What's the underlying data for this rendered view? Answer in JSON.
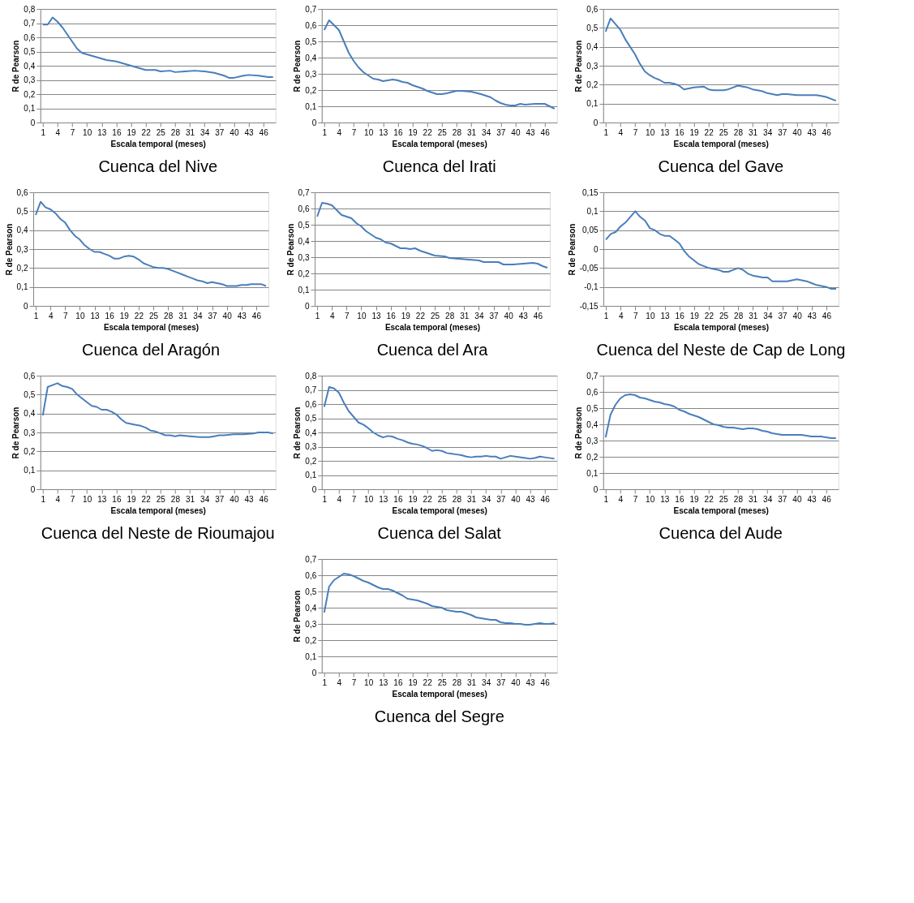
{
  "chart_data": [
    {
      "type": "line",
      "title": "Cuenca del Nive",
      "xlabel": "Escala temporal (meses)",
      "ylabel": "R de Pearson",
      "grid": "y",
      "xlim": [
        0.5,
        48.5
      ],
      "xticks": [
        1,
        4,
        7,
        10,
        13,
        16,
        19,
        22,
        25,
        28,
        31,
        34,
        37,
        40,
        43,
        46
      ],
      "ylim": [
        0,
        0.8
      ],
      "yticks": [
        {
          "value": 0,
          "label": "0"
        },
        {
          "value": 0.1,
          "label": "0,1"
        },
        {
          "value": 0.2,
          "label": "0,2"
        },
        {
          "value": 0.3,
          "label": "0,3"
        },
        {
          "value": 0.4,
          "label": "0,4"
        },
        {
          "value": 0.5,
          "label": "0,5"
        },
        {
          "value": 0.6,
          "label": "0,6"
        },
        {
          "value": 0.7,
          "label": "0,7"
        },
        {
          "value": 0.8,
          "label": "0,8"
        }
      ],
      "series": [
        {
          "color": "#4a7ebb",
          "x": [
            1,
            2,
            3,
            4,
            5,
            6,
            7,
            8,
            9,
            10,
            12,
            14,
            16,
            18,
            20,
            22,
            24,
            25,
            27,
            28,
            30,
            32,
            34,
            36,
            38,
            39,
            40,
            42,
            43,
            45,
            47,
            48
          ],
          "values": [
            0.69,
            0.69,
            0.74,
            0.71,
            0.67,
            0.62,
            0.57,
            0.52,
            0.49,
            0.48,
            0.46,
            0.44,
            0.43,
            0.41,
            0.39,
            0.37,
            0.37,
            0.36,
            0.365,
            0.355,
            0.36,
            0.365,
            0.36,
            0.35,
            0.33,
            0.315,
            0.315,
            0.33,
            0.335,
            0.33,
            0.32,
            0.32
          ]
        }
      ]
    },
    {
      "type": "line",
      "title": "Cuenca del Irati",
      "xlabel": "Escala temporal (meses)",
      "ylabel": "R de Pearson",
      "grid": "y",
      "xlim": [
        0.5,
        48.5
      ],
      "xticks": [
        1,
        4,
        7,
        10,
        13,
        16,
        19,
        22,
        25,
        28,
        31,
        34,
        37,
        40,
        43,
        46
      ],
      "ylim": [
        0,
        0.7
      ],
      "yticks": [
        {
          "value": 0,
          "label": "0"
        },
        {
          "value": 0.1,
          "label": "0,1"
        },
        {
          "value": 0.2,
          "label": "0,2"
        },
        {
          "value": 0.3,
          "label": "0,3"
        },
        {
          "value": 0.4,
          "label": "0,4"
        },
        {
          "value": 0.5,
          "label": "0,5"
        },
        {
          "value": 0.6,
          "label": "0,6"
        },
        {
          "value": 0.7,
          "label": "0,7"
        }
      ],
      "series": [
        {
          "color": "#4a7ebb",
          "x": [
            1,
            2,
            3,
            4,
            5,
            6,
            7,
            8,
            9,
            10,
            11,
            12,
            13,
            14,
            15,
            16,
            17,
            18,
            19,
            20,
            21,
            22,
            23,
            24,
            25,
            26,
            28,
            29,
            31,
            33,
            35,
            36,
            37,
            38,
            39,
            40,
            41,
            42,
            44,
            45,
            46,
            47,
            48
          ],
          "values": [
            0.57,
            0.63,
            0.6,
            0.57,
            0.5,
            0.43,
            0.38,
            0.34,
            0.31,
            0.29,
            0.27,
            0.265,
            0.255,
            0.26,
            0.265,
            0.26,
            0.25,
            0.245,
            0.23,
            0.22,
            0.21,
            0.195,
            0.185,
            0.175,
            0.175,
            0.18,
            0.195,
            0.195,
            0.19,
            0.175,
            0.155,
            0.135,
            0.12,
            0.11,
            0.105,
            0.105,
            0.115,
            0.11,
            0.115,
            0.115,
            0.115,
            0.1,
            0.085
          ]
        }
      ]
    },
    {
      "type": "line",
      "title": "Cuenca del Gave",
      "xlabel": "Escala temporal (meses)",
      "ylabel": "R de Pearson",
      "grid": "y",
      "xlim": [
        0.5,
        48.5
      ],
      "xticks": [
        1,
        4,
        7,
        10,
        13,
        16,
        19,
        22,
        25,
        28,
        31,
        34,
        37,
        40,
        43,
        46
      ],
      "ylim": [
        0,
        0.6
      ],
      "yticks": [
        {
          "value": 0,
          "label": "0"
        },
        {
          "value": 0.1,
          "label": "0,1"
        },
        {
          "value": 0.2,
          "label": "0,2"
        },
        {
          "value": 0.3,
          "label": "0,3"
        },
        {
          "value": 0.4,
          "label": "0,4"
        },
        {
          "value": 0.5,
          "label": "0,5"
        },
        {
          "value": 0.6,
          "label": "0,6"
        }
      ],
      "series": [
        {
          "color": "#4a7ebb",
          "x": [
            1,
            2,
            3,
            4,
            5,
            6,
            7,
            8,
            9,
            10,
            11,
            12,
            13,
            14,
            15,
            16,
            17,
            18,
            19,
            21,
            22,
            23,
            25,
            26,
            27,
            28,
            29,
            30,
            31,
            32,
            33,
            34,
            35,
            36,
            37,
            38,
            40,
            41,
            42,
            44,
            45,
            46,
            47,
            48
          ],
          "values": [
            0.48,
            0.55,
            0.52,
            0.49,
            0.44,
            0.4,
            0.36,
            0.31,
            0.27,
            0.25,
            0.235,
            0.225,
            0.21,
            0.21,
            0.205,
            0.195,
            0.175,
            0.18,
            0.185,
            0.19,
            0.175,
            0.17,
            0.17,
            0.175,
            0.185,
            0.195,
            0.19,
            0.185,
            0.175,
            0.17,
            0.165,
            0.155,
            0.15,
            0.145,
            0.15,
            0.15,
            0.145,
            0.145,
            0.145,
            0.145,
            0.14,
            0.135,
            0.125,
            0.115
          ]
        }
      ]
    },
    {
      "type": "line",
      "title": "Cuenca del Aragón",
      "xlabel": "Escala temporal (meses)",
      "ylabel": "R de Pearson",
      "grid": "y",
      "xlim": [
        0.5,
        48.5
      ],
      "xticks": [
        1,
        4,
        7,
        10,
        13,
        16,
        19,
        22,
        25,
        28,
        31,
        34,
        37,
        40,
        43,
        46
      ],
      "ylim": [
        0,
        0.6
      ],
      "yticks": [
        {
          "value": 0,
          "label": "0"
        },
        {
          "value": 0.1,
          "label": "0,1"
        },
        {
          "value": 0.2,
          "label": "0,2"
        },
        {
          "value": 0.3,
          "label": "0,3"
        },
        {
          "value": 0.4,
          "label": "0,4"
        },
        {
          "value": 0.5,
          "label": "0,5"
        },
        {
          "value": 0.6,
          "label": "0,6"
        }
      ],
      "series": [
        {
          "color": "#4a7ebb",
          "x": [
            1,
            2,
            3,
            4,
            5,
            6,
            7,
            8,
            9,
            10,
            11,
            12,
            13,
            14,
            15,
            16,
            17,
            18,
            19,
            20,
            21,
            22,
            23,
            24,
            25,
            26,
            27,
            28,
            29,
            30,
            31,
            32,
            33,
            34,
            35,
            36,
            37,
            38,
            39,
            40,
            41,
            42,
            43,
            44,
            45,
            46,
            47,
            48
          ],
          "values": [
            0.48,
            0.55,
            0.52,
            0.51,
            0.49,
            0.46,
            0.44,
            0.4,
            0.37,
            0.35,
            0.32,
            0.3,
            0.285,
            0.285,
            0.275,
            0.265,
            0.25,
            0.25,
            0.26,
            0.265,
            0.26,
            0.245,
            0.225,
            0.215,
            0.205,
            0.2,
            0.2,
            0.195,
            0.185,
            0.175,
            0.165,
            0.155,
            0.145,
            0.135,
            0.13,
            0.12,
            0.125,
            0.12,
            0.115,
            0.105,
            0.105,
            0.105,
            0.11,
            0.11,
            0.115,
            0.115,
            0.115,
            0.105
          ]
        }
      ]
    },
    {
      "type": "line",
      "title": "Cuenca del Ara",
      "xlabel": "Escala temporal (meses)",
      "ylabel": "R de Pearson",
      "grid": "y",
      "xlim": [
        0.5,
        48.5
      ],
      "xticks": [
        1,
        4,
        7,
        10,
        13,
        16,
        19,
        22,
        25,
        28,
        31,
        34,
        37,
        40,
        43,
        46
      ],
      "ylim": [
        0,
        0.7
      ],
      "yticks": [
        {
          "value": 0,
          "label": "0"
        },
        {
          "value": 0.1,
          "label": "0,1"
        },
        {
          "value": 0.2,
          "label": "0,2"
        },
        {
          "value": 0.3,
          "label": "0,3"
        },
        {
          "value": 0.4,
          "label": "0,4"
        },
        {
          "value": 0.5,
          "label": "0,5"
        },
        {
          "value": 0.6,
          "label": "0,6"
        },
        {
          "value": 0.7,
          "label": "0,7"
        }
      ],
      "series": [
        {
          "color": "#4a7ebb",
          "x": [
            1,
            2,
            3,
            4,
            5,
            6,
            7,
            8,
            9,
            10,
            11,
            12,
            13,
            14,
            15,
            16,
            17,
            18,
            19,
            20,
            21,
            22,
            23,
            24,
            25,
            27,
            28,
            30,
            32,
            34,
            35,
            37,
            38,
            39,
            41,
            43,
            45,
            46,
            47,
            48
          ],
          "values": [
            0.55,
            0.635,
            0.63,
            0.62,
            0.59,
            0.56,
            0.55,
            0.54,
            0.51,
            0.49,
            0.46,
            0.44,
            0.42,
            0.41,
            0.39,
            0.385,
            0.37,
            0.355,
            0.355,
            0.35,
            0.355,
            0.34,
            0.33,
            0.32,
            0.31,
            0.305,
            0.295,
            0.29,
            0.285,
            0.28,
            0.27,
            0.27,
            0.27,
            0.255,
            0.255,
            0.26,
            0.265,
            0.26,
            0.245,
            0.235
          ]
        }
      ]
    },
    {
      "type": "line",
      "title": "Cuenca del Neste de Cap de Long",
      "xlabel": "Escala temporal (meses)",
      "ylabel": "R de Pearson",
      "grid": "y",
      "xlim": [
        0.5,
        48.5
      ],
      "xticks": [
        1,
        4,
        7,
        10,
        13,
        16,
        19,
        22,
        25,
        28,
        31,
        34,
        37,
        40,
        43,
        46
      ],
      "ylim": [
        -0.15,
        0.15
      ],
      "yticks": [
        {
          "value": -0.15,
          "label": "-0,15"
        },
        {
          "value": -0.1,
          "label": "-0,1"
        },
        {
          "value": -0.05,
          "label": "-0,05"
        },
        {
          "value": 0,
          "label": "0"
        },
        {
          "value": 0.05,
          "label": "0,05"
        },
        {
          "value": 0.1,
          "label": "0,1"
        },
        {
          "value": 0.15,
          "label": "0,15"
        }
      ],
      "series": [
        {
          "color": "#4a7ebb",
          "x": [
            1,
            2,
            3,
            4,
            5,
            6,
            7,
            8,
            9,
            10,
            11,
            12,
            13,
            14,
            15,
            16,
            17,
            18,
            19,
            20,
            22,
            24,
            25,
            26,
            27,
            28,
            29,
            30,
            31,
            33,
            34,
            35,
            36,
            38,
            40,
            42,
            43,
            44,
            46,
            47,
            48
          ],
          "values": [
            0.025,
            0.04,
            0.045,
            0.06,
            0.07,
            0.085,
            0.1,
            0.085,
            0.075,
            0.055,
            0.05,
            0.04,
            0.035,
            0.035,
            0.025,
            0.015,
            -0.005,
            -0.02,
            -0.03,
            -0.04,
            -0.05,
            -0.055,
            -0.06,
            -0.06,
            -0.055,
            -0.05,
            -0.055,
            -0.065,
            -0.07,
            -0.075,
            -0.075,
            -0.085,
            -0.085,
            -0.085,
            -0.08,
            -0.085,
            -0.09,
            -0.095,
            -0.1,
            -0.105,
            -0.105
          ]
        }
      ]
    },
    {
      "type": "line",
      "title": "Cuenca del Neste de Rioumajou",
      "xlabel": "Escala temporal (meses)",
      "ylabel": "R de Pearson",
      "grid": "y",
      "xlim": [
        0.5,
        48.5
      ],
      "xticks": [
        1,
        4,
        7,
        10,
        13,
        16,
        19,
        22,
        25,
        28,
        31,
        34,
        37,
        40,
        43,
        46
      ],
      "ylim": [
        0,
        0.6
      ],
      "yticks": [
        {
          "value": 0,
          "label": "0"
        },
        {
          "value": 0.1,
          "label": "0,1"
        },
        {
          "value": 0.2,
          "label": "0,2"
        },
        {
          "value": 0.3,
          "label": "0,3"
        },
        {
          "value": 0.4,
          "label": "0,4"
        },
        {
          "value": 0.5,
          "label": "0,5"
        },
        {
          "value": 0.6,
          "label": "0,6"
        }
      ],
      "series": [
        {
          "color": "#4a7ebb",
          "x": [
            1,
            2,
            3,
            4,
            5,
            6,
            7,
            8,
            9,
            10,
            11,
            12,
            13,
            14,
            15,
            16,
            17,
            18,
            19,
            20,
            21,
            22,
            23,
            24,
            25,
            26,
            27,
            28,
            29,
            31,
            33,
            35,
            36,
            37,
            38,
            40,
            42,
            44,
            45,
            47,
            48
          ],
          "values": [
            0.39,
            0.54,
            0.55,
            0.56,
            0.545,
            0.54,
            0.53,
            0.5,
            0.48,
            0.46,
            0.44,
            0.435,
            0.42,
            0.42,
            0.41,
            0.395,
            0.37,
            0.35,
            0.345,
            0.34,
            0.335,
            0.325,
            0.31,
            0.305,
            0.295,
            0.285,
            0.285,
            0.28,
            0.285,
            0.28,
            0.275,
            0.275,
            0.28,
            0.285,
            0.285,
            0.29,
            0.29,
            0.295,
            0.3,
            0.3,
            0.295
          ]
        }
      ]
    },
    {
      "type": "line",
      "title": "Cuenca del Salat",
      "xlabel": "Escala temporal (meses)",
      "ylabel": "R de Pearson",
      "grid": "y",
      "xlim": [
        0.5,
        48.5
      ],
      "xticks": [
        1,
        4,
        7,
        10,
        13,
        16,
        19,
        22,
        25,
        28,
        31,
        34,
        37,
        40,
        43,
        46
      ],
      "ylim": [
        0,
        0.8
      ],
      "yticks": [
        {
          "value": 0,
          "label": "0"
        },
        {
          "value": 0.1,
          "label": "0,1"
        },
        {
          "value": 0.2,
          "label": "0,2"
        },
        {
          "value": 0.3,
          "label": "0,3"
        },
        {
          "value": 0.4,
          "label": "0,4"
        },
        {
          "value": 0.5,
          "label": "0,5"
        },
        {
          "value": 0.6,
          "label": "0,6"
        },
        {
          "value": 0.7,
          "label": "0,7"
        },
        {
          "value": 0.8,
          "label": "0,8"
        }
      ],
      "series": [
        {
          "color": "#4a7ebb",
          "x": [
            1,
            2,
            3,
            4,
            5,
            6,
            7,
            8,
            9,
            10,
            11,
            12,
            13,
            14,
            15,
            16,
            17,
            18,
            19,
            20,
            21,
            22,
            23,
            24,
            25,
            26,
            27,
            28,
            29,
            30,
            31,
            32,
            33,
            34,
            35,
            36,
            37,
            38,
            39,
            40,
            42,
            43,
            44,
            45,
            46,
            48
          ],
          "values": [
            0.58,
            0.72,
            0.71,
            0.68,
            0.61,
            0.55,
            0.51,
            0.47,
            0.455,
            0.43,
            0.4,
            0.38,
            0.365,
            0.375,
            0.37,
            0.355,
            0.345,
            0.33,
            0.32,
            0.315,
            0.305,
            0.29,
            0.27,
            0.275,
            0.27,
            0.255,
            0.25,
            0.245,
            0.24,
            0.23,
            0.225,
            0.23,
            0.23,
            0.235,
            0.23,
            0.23,
            0.215,
            0.225,
            0.235,
            0.23,
            0.22,
            0.215,
            0.22,
            0.23,
            0.225,
            0.215
          ]
        }
      ]
    },
    {
      "type": "line",
      "title": "Cuenca del Aude",
      "xlabel": "Escala temporal (meses)",
      "ylabel": "R de Pearson",
      "grid": "y",
      "xlim": [
        0.5,
        48.5
      ],
      "xticks": [
        1,
        4,
        7,
        10,
        13,
        16,
        19,
        22,
        25,
        28,
        31,
        34,
        37,
        40,
        43,
        46
      ],
      "ylim": [
        0,
        0.7
      ],
      "yticks": [
        {
          "value": 0,
          "label": "0"
        },
        {
          "value": 0.1,
          "label": "0,1"
        },
        {
          "value": 0.2,
          "label": "0,2"
        },
        {
          "value": 0.3,
          "label": "0,3"
        },
        {
          "value": 0.4,
          "label": "0,4"
        },
        {
          "value": 0.5,
          "label": "0,5"
        },
        {
          "value": 0.6,
          "label": "0,6"
        },
        {
          "value": 0.7,
          "label": "0,7"
        }
      ],
      "series": [
        {
          "color": "#4a7ebb",
          "x": [
            1,
            2,
            3,
            4,
            5,
            6,
            7,
            8,
            9,
            10,
            11,
            12,
            13,
            14,
            15,
            16,
            17,
            18,
            19,
            20,
            21,
            22,
            23,
            24,
            25,
            26,
            27,
            28,
            29,
            30,
            31,
            32,
            33,
            34,
            35,
            36,
            37,
            39,
            41,
            42,
            43,
            44,
            45,
            46,
            47,
            48
          ],
          "values": [
            0.32,
            0.46,
            0.52,
            0.56,
            0.58,
            0.585,
            0.58,
            0.565,
            0.56,
            0.55,
            0.54,
            0.535,
            0.525,
            0.52,
            0.51,
            0.49,
            0.48,
            0.465,
            0.455,
            0.445,
            0.43,
            0.415,
            0.4,
            0.395,
            0.385,
            0.38,
            0.38,
            0.375,
            0.37,
            0.375,
            0.375,
            0.37,
            0.36,
            0.355,
            0.345,
            0.34,
            0.335,
            0.335,
            0.335,
            0.33,
            0.325,
            0.325,
            0.325,
            0.32,
            0.315,
            0.315
          ]
        }
      ]
    },
    {
      "type": "line",
      "title": "Cuenca del Segre",
      "xlabel": "Escala temporal (meses)",
      "ylabel": "R de Pearson",
      "grid": "y",
      "xlim": [
        0.5,
        48.5
      ],
      "xticks": [
        1,
        4,
        7,
        10,
        13,
        16,
        19,
        22,
        25,
        28,
        31,
        34,
        37,
        40,
        43,
        46
      ],
      "ylim": [
        0,
        0.7
      ],
      "yticks": [
        {
          "value": 0,
          "label": "0"
        },
        {
          "value": 0.1,
          "label": "0,1"
        },
        {
          "value": 0.2,
          "label": "0,2"
        },
        {
          "value": 0.3,
          "label": "0,3"
        },
        {
          "value": 0.4,
          "label": "0,4"
        },
        {
          "value": 0.5,
          "label": "0,5"
        },
        {
          "value": 0.6,
          "label": "0,6"
        },
        {
          "value": 0.7,
          "label": "0,7"
        }
      ],
      "series": [
        {
          "color": "#4a7ebb",
          "x": [
            1,
            2,
            3,
            4,
            5,
            6,
            7,
            8,
            9,
            10,
            11,
            12,
            13,
            14,
            15,
            16,
            17,
            18,
            19,
            20,
            21,
            22,
            23,
            24,
            25,
            26,
            27,
            28,
            29,
            30,
            31,
            32,
            33,
            34,
            35,
            36,
            37,
            38,
            39,
            40,
            41,
            42,
            43,
            44,
            45,
            46,
            47,
            48
          ],
          "values": [
            0.37,
            0.53,
            0.57,
            0.59,
            0.61,
            0.605,
            0.595,
            0.58,
            0.565,
            0.555,
            0.54,
            0.525,
            0.515,
            0.515,
            0.505,
            0.49,
            0.475,
            0.455,
            0.45,
            0.445,
            0.435,
            0.425,
            0.41,
            0.405,
            0.4,
            0.385,
            0.38,
            0.375,
            0.375,
            0.365,
            0.355,
            0.34,
            0.335,
            0.33,
            0.325,
            0.325,
            0.31,
            0.305,
            0.305,
            0.3,
            0.3,
            0.295,
            0.295,
            0.3,
            0.305,
            0.3,
            0.3,
            0.305
          ]
        }
      ]
    }
  ]
}
